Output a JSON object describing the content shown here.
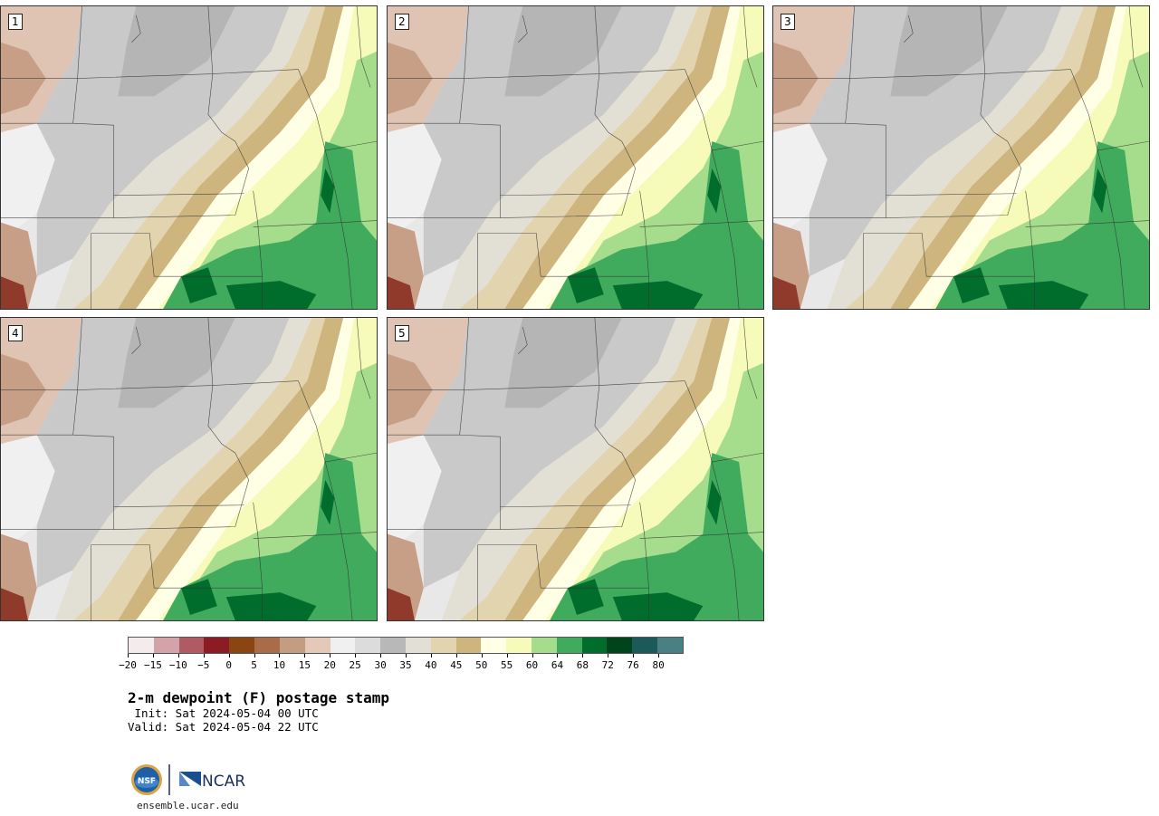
{
  "panels": [
    {
      "label": "1"
    },
    {
      "label": "2"
    },
    {
      "label": "3"
    },
    {
      "label": "4"
    },
    {
      "label": "5"
    }
  ],
  "colorbar": {
    "ticks": [
      "−20",
      "−15",
      "−10",
      "−5",
      "0",
      "5",
      "10",
      "15",
      "20",
      "25",
      "30",
      "35",
      "40",
      "45",
      "50",
      "55",
      "60",
      "64",
      "68",
      "72",
      "76",
      "80"
    ],
    "colors": [
      "#f4ecec",
      "#d4a3aa",
      "#b05a64",
      "#8c1c24",
      "#8a4511",
      "#a86c48",
      "#c49c82",
      "#e4c8b8",
      "#f0f0f0",
      "#dcdcdc",
      "#b8b8b8",
      "#e2e0d4",
      "#e2d4ae",
      "#cdb57d",
      "#ffffe6",
      "#f6fbb9",
      "#a5dd8c",
      "#41ab5d",
      "#006d2c",
      "#00441b",
      "#1c5a5a",
      "#4a7f84"
    ]
  },
  "title": "2-m dewpoint (F) postage stamp",
  "init": " Init: Sat 2024-05-04 00 UTC",
  "valid": "Valid: Sat 2024-05-04 22 UTC",
  "logos": {
    "nsf": "NSF",
    "ncar": "NCAR"
  },
  "url": "ensemble.ucar.edu"
}
